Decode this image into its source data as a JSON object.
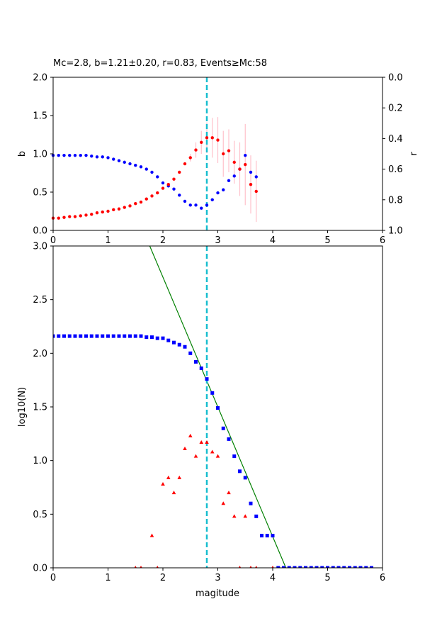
{
  "chart_data": [
    {
      "type": "scatter",
      "title": "Mc=2.8, b=1.21±0.20, r=0.83, Events≥Mc:58",
      "xlabel": "",
      "ylabel": "b",
      "ylabel_right": "r",
      "xlim": [
        0,
        6
      ],
      "ylim": [
        0,
        2
      ],
      "ylim_right": [
        1,
        0
      ],
      "xticks": [
        "0",
        "1",
        "2",
        "3",
        "4",
        "5",
        "6"
      ],
      "yticks": [
        "0.0",
        "0.5",
        "1.0",
        "1.5",
        "2.0"
      ],
      "yticks_right": [
        "0.0",
        "0.2",
        "0.4",
        "0.6",
        "0.8",
        "1.0"
      ],
      "mc_line": 2.8,
      "colors": {
        "b": "#ff0000",
        "r": "#0000ff",
        "errorbar": "#ffc0cb",
        "mc": "#17becf"
      },
      "b_series": {
        "x": [
          0,
          0.1,
          0.2,
          0.3,
          0.4,
          0.5,
          0.6,
          0.7,
          0.8,
          0.9,
          1.0,
          1.1,
          1.2,
          1.3,
          1.4,
          1.5,
          1.6,
          1.7,
          1.8,
          1.9,
          2.0,
          2.1,
          2.2,
          2.3,
          2.4,
          2.5,
          2.6,
          2.7,
          2.8,
          2.9,
          3.0,
          3.1,
          3.2,
          3.3,
          3.4,
          3.5,
          3.6,
          3.7
        ],
        "y": [
          0.16,
          0.16,
          0.17,
          0.18,
          0.18,
          0.19,
          0.2,
          0.21,
          0.23,
          0.24,
          0.25,
          0.27,
          0.28,
          0.3,
          0.32,
          0.35,
          0.37,
          0.41,
          0.45,
          0.49,
          0.55,
          0.6,
          0.67,
          0.76,
          0.87,
          0.95,
          1.05,
          1.15,
          1.21,
          1.21,
          1.18,
          1.0,
          1.04,
          0.89,
          0.8,
          0.86,
          0.6,
          0.51
        ],
        "err": [
          0,
          0,
          0,
          0,
          0,
          0,
          0,
          0,
          0,
          0,
          0,
          0,
          0,
          0,
          0,
          0,
          0,
          0,
          0,
          0,
          0,
          0,
          0,
          0,
          0,
          0.05,
          0.1,
          0.15,
          0.2,
          0.26,
          0.3,
          0.3,
          0.28,
          0.28,
          0.35,
          0.53,
          0.38,
          0.4
        ]
      },
      "r_series": {
        "x": [
          0,
          0.1,
          0.2,
          0.3,
          0.4,
          0.5,
          0.6,
          0.7,
          0.8,
          0.9,
          1.0,
          1.1,
          1.2,
          1.3,
          1.4,
          1.5,
          1.6,
          1.7,
          1.8,
          1.9,
          2.0,
          2.1,
          2.2,
          2.3,
          2.4,
          2.5,
          2.6,
          2.7,
          2.8,
          2.9,
          3.0,
          3.1,
          3.2,
          3.3,
          3.4,
          3.5,
          3.6,
          3.7
        ],
        "y": [
          0.51,
          0.51,
          0.51,
          0.51,
          0.51,
          0.51,
          0.51,
          0.515,
          0.52,
          0.52,
          0.525,
          0.535,
          0.545,
          0.555,
          0.565,
          0.575,
          0.585,
          0.6,
          0.62,
          0.65,
          0.69,
          0.71,
          0.73,
          0.77,
          0.81,
          0.835,
          0.835,
          0.855,
          0.835,
          0.8,
          0.755,
          0.735,
          0.675,
          0.645,
          0.6,
          0.51,
          0.62,
          0.65
        ]
      }
    },
    {
      "type": "scatter",
      "title": "",
      "xlabel": "magitude",
      "ylabel": "log10(N)",
      "xlim": [
        0,
        6
      ],
      "ylim": [
        0,
        3
      ],
      "xticks": [
        "0",
        "1",
        "2",
        "3",
        "4",
        "5",
        "6"
      ],
      "yticks": [
        "0.0",
        "0.5",
        "1.0",
        "1.5",
        "2.0",
        "2.5",
        "3.0"
      ],
      "mc_line": 2.8,
      "colors": {
        "cumulative": "#0000ff",
        "noncumulative": "#ff0000",
        "fit": "#008000",
        "mc": "#17becf"
      },
      "cumulative": {
        "x": [
          0,
          0.1,
          0.2,
          0.3,
          0.4,
          0.5,
          0.6,
          0.7,
          0.8,
          0.9,
          1.0,
          1.1,
          1.2,
          1.3,
          1.4,
          1.5,
          1.6,
          1.7,
          1.8,
          1.9,
          2.0,
          2.1,
          2.2,
          2.3,
          2.4,
          2.5,
          2.6,
          2.7,
          2.8,
          2.9,
          3.0,
          3.1,
          3.2,
          3.3,
          3.4,
          3.5,
          3.6,
          3.7,
          3.8,
          3.9,
          4.0,
          4.1,
          4.2,
          4.3,
          4.4,
          4.5,
          4.6,
          4.7,
          4.8,
          4.9,
          5.0,
          5.1,
          5.2,
          5.3,
          5.4,
          5.5,
          5.6,
          5.7,
          5.8
        ],
        "y": [
          2.16,
          2.16,
          2.16,
          2.16,
          2.16,
          2.16,
          2.16,
          2.16,
          2.16,
          2.16,
          2.16,
          2.16,
          2.16,
          2.16,
          2.16,
          2.16,
          2.16,
          2.15,
          2.15,
          2.14,
          2.14,
          2.12,
          2.1,
          2.08,
          2.06,
          2.0,
          1.92,
          1.86,
          1.76,
          1.63,
          1.49,
          1.3,
          1.2,
          1.04,
          0.9,
          0.84,
          0.6,
          0.48,
          0.3,
          0.3,
          0.3,
          0,
          0,
          0,
          0,
          0,
          0,
          0,
          0,
          0,
          0,
          0,
          0,
          0,
          0,
          0,
          0,
          0,
          0
        ]
      },
      "noncumulative": {
        "x": [
          1.5,
          1.6,
          1.8,
          1.9,
          2.0,
          2.1,
          2.2,
          2.3,
          2.4,
          2.5,
          2.6,
          2.7,
          2.8,
          2.9,
          3.0,
          3.1,
          3.2,
          3.3,
          3.4,
          3.5,
          3.6,
          3.7,
          4.0
        ],
        "y": [
          0,
          0,
          0.3,
          0,
          0.78,
          0.84,
          0.7,
          0.84,
          1.11,
          1.23,
          1.04,
          1.17,
          1.17,
          1.08,
          1.04,
          0.6,
          0.7,
          0.48,
          0,
          0.48,
          0,
          0,
          0
        ]
      },
      "fit_line": {
        "x": [
          1.76,
          4.24
        ],
        "y": [
          3.0,
          0.0
        ]
      }
    }
  ]
}
